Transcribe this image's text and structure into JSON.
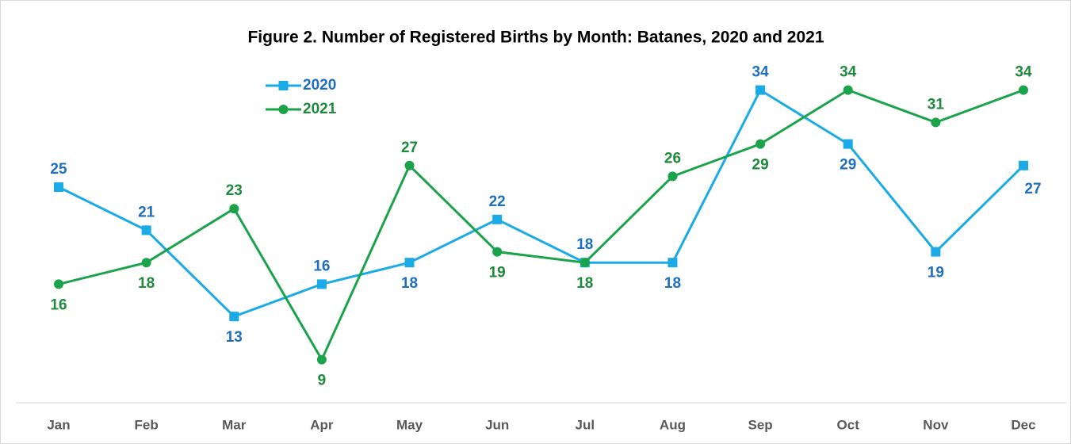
{
  "chart_data": {
    "type": "line",
    "title": "Figure 2. Number of Registered Births by Month: Batanes, 2020 and 2021",
    "categories": [
      "Jan",
      "Feb",
      "Mar",
      "Apr",
      "May",
      "Jun",
      "Jul",
      "Aug",
      "Sep",
      "Oct",
      "Nov",
      "Dec"
    ],
    "series": [
      {
        "name": "2020",
        "color": "#1aabe6",
        "label_color": "#1f6fbf",
        "marker": "square",
        "values": [
          25,
          21,
          13,
          16,
          18,
          22,
          18,
          18,
          34,
          29,
          19,
          27
        ]
      },
      {
        "name": "2021",
        "color": "#1aa34a",
        "label_color": "#1e8a3c",
        "marker": "circle",
        "values": [
          16,
          18,
          23,
          9,
          27,
          19,
          18,
          26,
          29,
          34,
          31,
          34
        ]
      }
    ],
    "ylim": [
      5,
      36
    ],
    "legend": "upper left"
  }
}
